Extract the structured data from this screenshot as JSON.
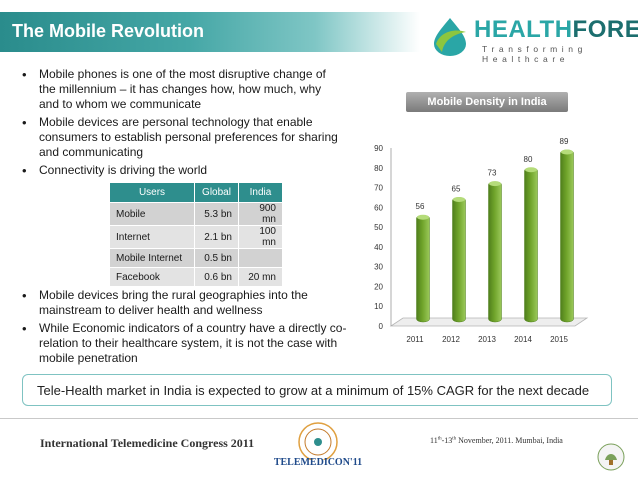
{
  "title": "The Mobile Revolution",
  "logo": {
    "name_part1": "HEALTH",
    "name_part2": "FORE",
    "tagline": "Transforming Healthcare"
  },
  "bullets_top": [
    "Mobile phones is  one of the most disruptive change of the millennium – it has changes how, how much, why and to whom we communicate",
    "Mobile devices are personal technology that enable consumers to establish personal preferences for sharing and communicating",
    "Connectivity is driving the world"
  ],
  "table": {
    "headers": [
      "Users",
      "Global",
      "India"
    ],
    "rows": [
      [
        "Mobile",
        "5.3 bn",
        "900 mn"
      ],
      [
        "Internet",
        "2.1 bn",
        "100 mn"
      ],
      [
        "Mobile Internet",
        "0.5 bn",
        ""
      ],
      [
        "Facebook",
        "0.6 bn",
        "20 mn"
      ]
    ]
  },
  "bullets_bottom": [
    "Mobile devices bring the rural geographies into the mainstream to deliver health and wellness",
    "While Economic indicators of a country have a directly co-relation  to their healthcare system, it is not the case with mobile penetration"
  ],
  "chart_data": {
    "type": "bar",
    "title": "Mobile Density in India",
    "categories": [
      "2011",
      "2012",
      "2013",
      "2014",
      "2015"
    ],
    "values": [
      56,
      65,
      73,
      80,
      89
    ],
    "ylim": [
      0,
      90
    ],
    "yticks": [
      0,
      10,
      20,
      30,
      40,
      50,
      60,
      70,
      80,
      90
    ],
    "xlabel": "",
    "ylabel": "",
    "bar_color": "#6fa32a",
    "grid": false,
    "legend": "none"
  },
  "callout": "Tele-Health market in India is expected to grow at a minimum of 15% CAGR for the next decade",
  "footer": {
    "left": "International Telemedicine Congress 2011",
    "right_day_start": "11",
    "right_day_end": "13",
    "right_suffix_th": "th",
    "right_rest": " November, 2011. Mumbai, India",
    "seal_text": "TELEMEDICON'11"
  },
  "colors": {
    "accent": "#2e8e8d",
    "bar": "#6fa32a"
  }
}
